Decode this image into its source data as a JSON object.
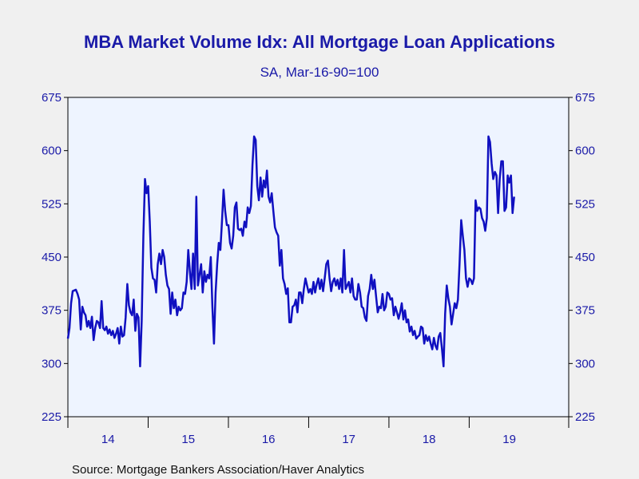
{
  "chart_data": {
    "type": "line",
    "title": "MBA Market Volume Idx: All Mortgage Loan Applications",
    "subtitle": "SA, Mar-16-90=100",
    "source": "Source:  Mortgage Bankers Association/Haver Analytics",
    "ylim": [
      225,
      675
    ],
    "y_ticks": [
      "675",
      "600",
      "525",
      "450",
      "375",
      "300",
      "225"
    ],
    "y_tick_values": [
      675,
      600,
      525,
      450,
      375,
      300,
      225
    ],
    "xlim": [
      2013.5,
      2019.74
    ],
    "x_ticks": [
      "14",
      "15",
      "16",
      "17",
      "18",
      "19"
    ],
    "x_tick_values": [
      2014,
      2015,
      2016,
      2017,
      2018,
      2019
    ],
    "x_boundaries": [
      2013.5,
      2014.5,
      2015.5,
      2016.5,
      2017.5,
      2018.5,
      2019.74
    ],
    "grid": false,
    "legend": "none",
    "colors": {
      "line": "#1010c0",
      "plot_bg": "#eef4ff",
      "page_bg": "#f0f0f0",
      "text": "#1a1aa8"
    },
    "series": [
      {
        "values": [
          [
            2013.5,
            335
          ],
          [
            2013.52,
            350
          ],
          [
            2013.54,
            385
          ],
          [
            2013.56,
            402
          ],
          [
            2013.58,
            403
          ],
          [
            2013.6,
            404
          ],
          [
            2013.62,
            398
          ],
          [
            2013.64,
            390
          ],
          [
            2013.66,
            348
          ],
          [
            2013.68,
            380
          ],
          [
            2013.7,
            372
          ],
          [
            2013.72,
            368
          ],
          [
            2013.74,
            352
          ],
          [
            2013.76,
            360
          ],
          [
            2013.78,
            350
          ],
          [
            2013.8,
            366
          ],
          [
            2013.82,
            333
          ],
          [
            2013.84,
            350
          ],
          [
            2013.86,
            360
          ],
          [
            2013.88,
            358
          ],
          [
            2013.9,
            350
          ],
          [
            2013.92,
            388
          ],
          [
            2013.94,
            350
          ],
          [
            2013.96,
            347
          ],
          [
            2013.98,
            352
          ],
          [
            2014.0,
            342
          ],
          [
            2014.02,
            348
          ],
          [
            2014.04,
            340
          ],
          [
            2014.06,
            346
          ],
          [
            2014.08,
            336
          ],
          [
            2014.1,
            342
          ],
          [
            2014.12,
            350
          ],
          [
            2014.14,
            328
          ],
          [
            2014.16,
            352
          ],
          [
            2014.18,
            338
          ],
          [
            2014.2,
            340
          ],
          [
            2014.22,
            365
          ],
          [
            2014.24,
            412
          ],
          [
            2014.26,
            382
          ],
          [
            2014.28,
            372
          ],
          [
            2014.3,
            368
          ],
          [
            2014.32,
            390
          ],
          [
            2014.34,
            346
          ],
          [
            2014.36,
            370
          ],
          [
            2014.38,
            365
          ],
          [
            2014.4,
            296
          ],
          [
            2014.42,
            360
          ],
          [
            2014.44,
            480
          ],
          [
            2014.46,
            560
          ],
          [
            2014.48,
            540
          ],
          [
            2014.5,
            550
          ],
          [
            2014.52,
            500
          ],
          [
            2014.54,
            435
          ],
          [
            2014.56,
            420
          ],
          [
            2014.58,
            418
          ],
          [
            2014.6,
            400
          ],
          [
            2014.62,
            440
          ],
          [
            2014.64,
            455
          ],
          [
            2014.66,
            440
          ],
          [
            2014.68,
            460
          ],
          [
            2014.7,
            450
          ],
          [
            2014.72,
            425
          ],
          [
            2014.74,
            410
          ],
          [
            2014.76,
            405
          ],
          [
            2014.78,
            370
          ],
          [
            2014.8,
            400
          ],
          [
            2014.82,
            378
          ],
          [
            2014.84,
            390
          ],
          [
            2014.86,
            368
          ],
          [
            2014.88,
            380
          ],
          [
            2014.9,
            375
          ],
          [
            2014.92,
            378
          ],
          [
            2014.94,
            400
          ],
          [
            2014.96,
            398
          ],
          [
            2014.98,
            415
          ],
          [
            2015.0,
            460
          ],
          [
            2015.02,
            430
          ],
          [
            2015.04,
            405
          ],
          [
            2015.06,
            455
          ],
          [
            2015.08,
            405
          ],
          [
            2015.1,
            535
          ],
          [
            2015.12,
            410
          ],
          [
            2015.14,
            425
          ],
          [
            2015.16,
            440
          ],
          [
            2015.18,
            400
          ],
          [
            2015.2,
            430
          ],
          [
            2015.22,
            415
          ],
          [
            2015.24,
            425
          ],
          [
            2015.26,
            420
          ],
          [
            2015.28,
            450
          ],
          [
            2015.3,
            380
          ],
          [
            2015.32,
            328
          ],
          [
            2015.34,
            400
          ],
          [
            2015.36,
            440
          ],
          [
            2015.38,
            470
          ],
          [
            2015.4,
            460
          ],
          [
            2015.42,
            500
          ],
          [
            2015.44,
            545
          ],
          [
            2015.46,
            515
          ],
          [
            2015.48,
            495
          ],
          [
            2015.5,
            495
          ],
          [
            2015.52,
            470
          ],
          [
            2015.54,
            462
          ],
          [
            2015.56,
            480
          ],
          [
            2015.58,
            520
          ],
          [
            2015.6,
            527
          ],
          [
            2015.62,
            490
          ],
          [
            2015.64,
            488
          ],
          [
            2015.66,
            490
          ],
          [
            2015.68,
            480
          ],
          [
            2015.7,
            500
          ],
          [
            2015.72,
            492
          ],
          [
            2015.74,
            520
          ],
          [
            2015.76,
            512
          ],
          [
            2015.78,
            522
          ],
          [
            2015.8,
            580
          ],
          [
            2015.82,
            620
          ],
          [
            2015.84,
            615
          ],
          [
            2015.86,
            550
          ],
          [
            2015.88,
            530
          ],
          [
            2015.9,
            562
          ],
          [
            2015.92,
            535
          ],
          [
            2015.94,
            558
          ],
          [
            2015.96,
            548
          ],
          [
            2015.98,
            572
          ],
          [
            2016.0,
            535
          ],
          [
            2016.02,
            527
          ],
          [
            2016.04,
            540
          ],
          [
            2016.06,
            515
          ],
          [
            2016.08,
            492
          ],
          [
            2016.1,
            485
          ],
          [
            2016.12,
            480
          ],
          [
            2016.14,
            438
          ],
          [
            2016.16,
            460
          ],
          [
            2016.18,
            420
          ],
          [
            2016.2,
            412
          ],
          [
            2016.22,
            398
          ],
          [
            2016.24,
            406
          ],
          [
            2016.26,
            358
          ],
          [
            2016.28,
            358
          ],
          [
            2016.3,
            380
          ],
          [
            2016.32,
            382
          ],
          [
            2016.34,
            390
          ],
          [
            2016.36,
            372
          ],
          [
            2016.38,
            400
          ],
          [
            2016.4,
            400
          ],
          [
            2016.42,
            385
          ],
          [
            2016.44,
            405
          ],
          [
            2016.46,
            420
          ],
          [
            2016.48,
            410
          ],
          [
            2016.5,
            400
          ],
          [
            2016.52,
            405
          ],
          [
            2016.54,
            398
          ],
          [
            2016.56,
            415
          ],
          [
            2016.58,
            400
          ],
          [
            2016.6,
            412
          ],
          [
            2016.62,
            420
          ],
          [
            2016.64,
            405
          ],
          [
            2016.66,
            418
          ],
          [
            2016.68,
            402
          ],
          [
            2016.7,
            420
          ],
          [
            2016.72,
            440
          ],
          [
            2016.74,
            445
          ],
          [
            2016.76,
            420
          ],
          [
            2016.78,
            402
          ],
          [
            2016.8,
            415
          ],
          [
            2016.82,
            420
          ],
          [
            2016.84,
            410
          ],
          [
            2016.86,
            418
          ],
          [
            2016.88,
            405
          ],
          [
            2016.9,
            420
          ],
          [
            2016.92,
            400
          ],
          [
            2016.94,
            460
          ],
          [
            2016.96,
            405
          ],
          [
            2016.98,
            410
          ],
          [
            2017.0,
            415
          ],
          [
            2017.02,
            400
          ],
          [
            2017.04,
            420
          ],
          [
            2017.06,
            395
          ],
          [
            2017.08,
            390
          ],
          [
            2017.1,
            390
          ],
          [
            2017.12,
            412
          ],
          [
            2017.14,
            400
          ],
          [
            2017.16,
            380
          ],
          [
            2017.18,
            378
          ],
          [
            2017.2,
            365
          ],
          [
            2017.22,
            360
          ],
          [
            2017.24,
            395
          ],
          [
            2017.26,
            405
          ],
          [
            2017.28,
            425
          ],
          [
            2017.3,
            405
          ],
          [
            2017.32,
            418
          ],
          [
            2017.34,
            395
          ],
          [
            2017.36,
            372
          ],
          [
            2017.38,
            380
          ],
          [
            2017.4,
            378
          ],
          [
            2017.42,
            398
          ],
          [
            2017.44,
            375
          ],
          [
            2017.46,
            380
          ],
          [
            2017.48,
            400
          ],
          [
            2017.5,
            398
          ],
          [
            2017.52,
            390
          ],
          [
            2017.54,
            392
          ],
          [
            2017.56,
            368
          ],
          [
            2017.58,
            380
          ],
          [
            2017.6,
            372
          ],
          [
            2017.62,
            363
          ],
          [
            2017.64,
            372
          ],
          [
            2017.66,
            385
          ],
          [
            2017.68,
            362
          ],
          [
            2017.7,
            375
          ],
          [
            2017.72,
            358
          ],
          [
            2017.74,
            362
          ],
          [
            2017.76,
            345
          ],
          [
            2017.78,
            352
          ],
          [
            2017.8,
            340
          ],
          [
            2017.82,
            346
          ],
          [
            2017.84,
            335
          ],
          [
            2017.86,
            338
          ],
          [
            2017.88,
            340
          ],
          [
            2017.9,
            352
          ],
          [
            2017.92,
            350
          ],
          [
            2017.94,
            328
          ],
          [
            2017.96,
            340
          ],
          [
            2017.98,
            332
          ],
          [
            2018.0,
            338
          ],
          [
            2018.02,
            328
          ],
          [
            2018.04,
            320
          ],
          [
            2018.06,
            336
          ],
          [
            2018.08,
            325
          ],
          [
            2018.1,
            320
          ],
          [
            2018.12,
            338
          ],
          [
            2018.14,
            343
          ],
          [
            2018.16,
            322
          ],
          [
            2018.18,
            296
          ],
          [
            2018.2,
            370
          ],
          [
            2018.22,
            410
          ],
          [
            2018.24,
            392
          ],
          [
            2018.26,
            380
          ],
          [
            2018.28,
            355
          ],
          [
            2018.3,
            370
          ],
          [
            2018.32,
            385
          ],
          [
            2018.34,
            378
          ],
          [
            2018.36,
            390
          ],
          [
            2018.38,
            440
          ],
          [
            2018.4,
            502
          ],
          [
            2018.42,
            480
          ],
          [
            2018.44,
            460
          ],
          [
            2018.46,
            420
          ],
          [
            2018.48,
            408
          ],
          [
            2018.5,
            420
          ],
          [
            2018.52,
            418
          ],
          [
            2018.54,
            412
          ],
          [
            2018.56,
            420
          ],
          [
            2018.58,
            530
          ],
          [
            2018.6,
            515
          ],
          [
            2018.62,
            520
          ],
          [
            2018.64,
            518
          ],
          [
            2018.66,
            505
          ],
          [
            2018.68,
            500
          ],
          [
            2018.7,
            487
          ],
          [
            2018.72,
            505
          ],
          [
            2018.74,
            620
          ],
          [
            2018.76,
            612
          ],
          [
            2018.78,
            582
          ],
          [
            2018.8,
            560
          ],
          [
            2018.82,
            570
          ],
          [
            2018.84,
            565
          ],
          [
            2018.86,
            512
          ],
          [
            2018.88,
            560
          ],
          [
            2018.9,
            585
          ],
          [
            2018.92,
            585
          ],
          [
            2018.94,
            515
          ],
          [
            2018.96,
            520
          ],
          [
            2018.98,
            565
          ],
          [
            2019.0,
            555
          ],
          [
            2019.02,
            565
          ],
          [
            2019.04,
            512
          ],
          [
            2019.06,
            535
          ]
        ]
      }
    ]
  }
}
